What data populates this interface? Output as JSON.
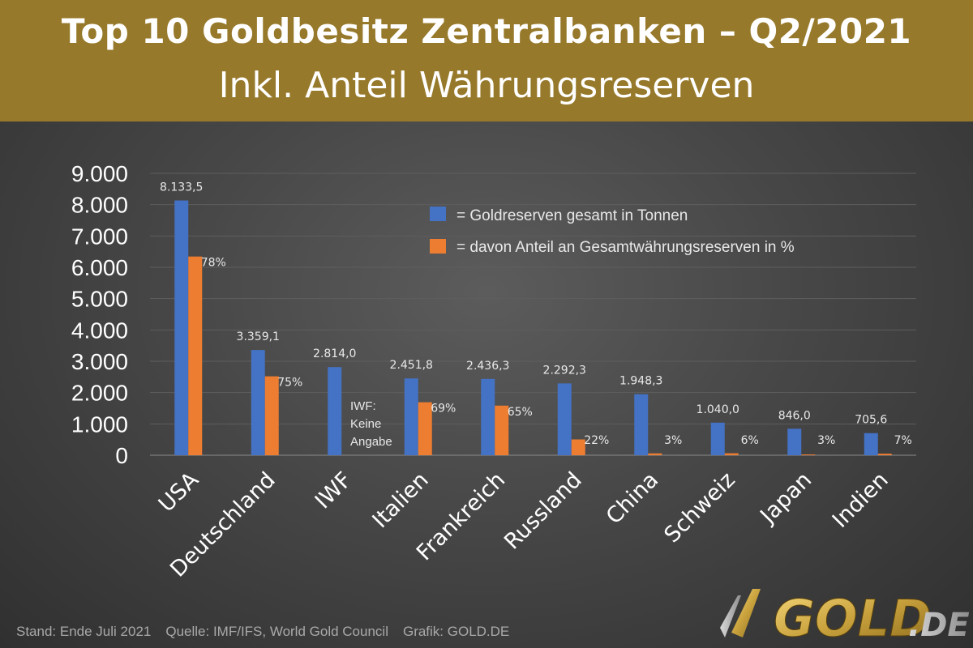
{
  "header": {
    "title": "Top 10 Goldbesitz Zentralbanken – Q2/2021",
    "subtitle": "Inkl. Anteil Währungsreserven",
    "background_color": "#97792b"
  },
  "chart_data": {
    "type": "bar",
    "categories": [
      "USA",
      "Deutschland",
      "IWF",
      "Italien",
      "Frankreich",
      "Russland",
      "China",
      "Schweiz",
      "Japan",
      "Indien"
    ],
    "series": [
      {
        "name": "= Goldreserven gesamt in Tonnen",
        "color": "#4472c4",
        "values": [
          8133.5,
          3359.1,
          2814.0,
          2451.8,
          2436.3,
          2292.3,
          1948.3,
          1040.0,
          846.0,
          705.6
        ],
        "labels": [
          "8.133,5",
          "3.359,1",
          "2.814,0",
          "2.451,8",
          "2.436,3",
          "2.292,3",
          "1.948,3",
          "1.040,0",
          "846,0",
          "705,6"
        ]
      },
      {
        "name": "= davon Anteil an Gesamtwährungsreserven in %",
        "color": "#ed7d31",
        "values": [
          78,
          75,
          null,
          69,
          65,
          22,
          3,
          6,
          3,
          7
        ],
        "labels": [
          "78%",
          "75%",
          "",
          "69%",
          "65%",
          "22%",
          "3%",
          "6%",
          "3%",
          "7%"
        ]
      }
    ],
    "annotation": [
      "IWF:",
      "Keine",
      "Angabe"
    ],
    "y_ticks": [
      "9.000",
      "8.000",
      "7.000",
      "6.000",
      "5.000",
      "4.000",
      "3.000",
      "2.000",
      "1.000",
      "0"
    ],
    "ylim": [
      0,
      9000
    ],
    "grid": true,
    "legend_position": "top-right"
  },
  "footer": {
    "stand": "Stand: Ende Juli 2021",
    "quelle": "Quelle: IMF/IFS, World Gold Council",
    "grafik": "Grafik: GOLD.DE"
  },
  "logo": {
    "text": "GOLD",
    "suffix": ".DE"
  }
}
